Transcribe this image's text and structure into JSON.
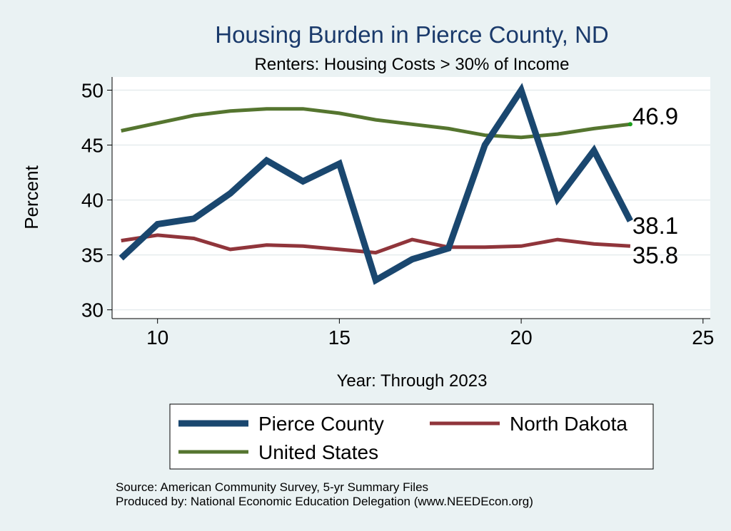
{
  "chart_data": {
    "type": "line",
    "title": "Housing Burden in Pierce County, ND",
    "subtitle": "Renters: Housing Costs > 30% of Income",
    "xlabel": "Year: Through 2023",
    "ylabel": "Percent",
    "xlim": [
      8.75,
      25.2
    ],
    "ylim": [
      29.2,
      51.2
    ],
    "x_ticks": [
      10,
      15,
      20,
      25
    ],
    "y_ticks": [
      30,
      35,
      40,
      45,
      50
    ],
    "grid": true,
    "legend_position": "bottom",
    "x": [
      9,
      10,
      11,
      12,
      13,
      14,
      15,
      16,
      17,
      18,
      19,
      20,
      21,
      22,
      23
    ],
    "series": [
      {
        "name": "Pierce County",
        "color": "#1a476f",
        "values": [
          34.7,
          37.8,
          38.3,
          40.6,
          43.6,
          41.7,
          43.3,
          32.7,
          34.6,
          35.6,
          45.0,
          50.0,
          40.1,
          44.5,
          38.1
        ],
        "end_label": "38.1"
      },
      {
        "name": "North Dakota",
        "color": "#90353b",
        "values": [
          36.3,
          36.8,
          36.5,
          35.5,
          35.9,
          35.8,
          35.5,
          35.2,
          36.4,
          35.7,
          35.7,
          35.8,
          36.4,
          36.0,
          35.8
        ],
        "end_label": "35.8"
      },
      {
        "name": "United States",
        "color": "#55752f",
        "values": [
          46.3,
          47.0,
          47.7,
          48.1,
          48.3,
          48.3,
          47.9,
          47.3,
          46.9,
          46.5,
          45.9,
          45.7,
          46.0,
          46.5,
          46.9
        ],
        "end_label": "46.9"
      }
    ],
    "source_note": "Source: American Community Survey, 5-yr Summary Files",
    "producer_note": "Produced by: National Economic Education Delegation (www.NEEDEcon.org)"
  }
}
